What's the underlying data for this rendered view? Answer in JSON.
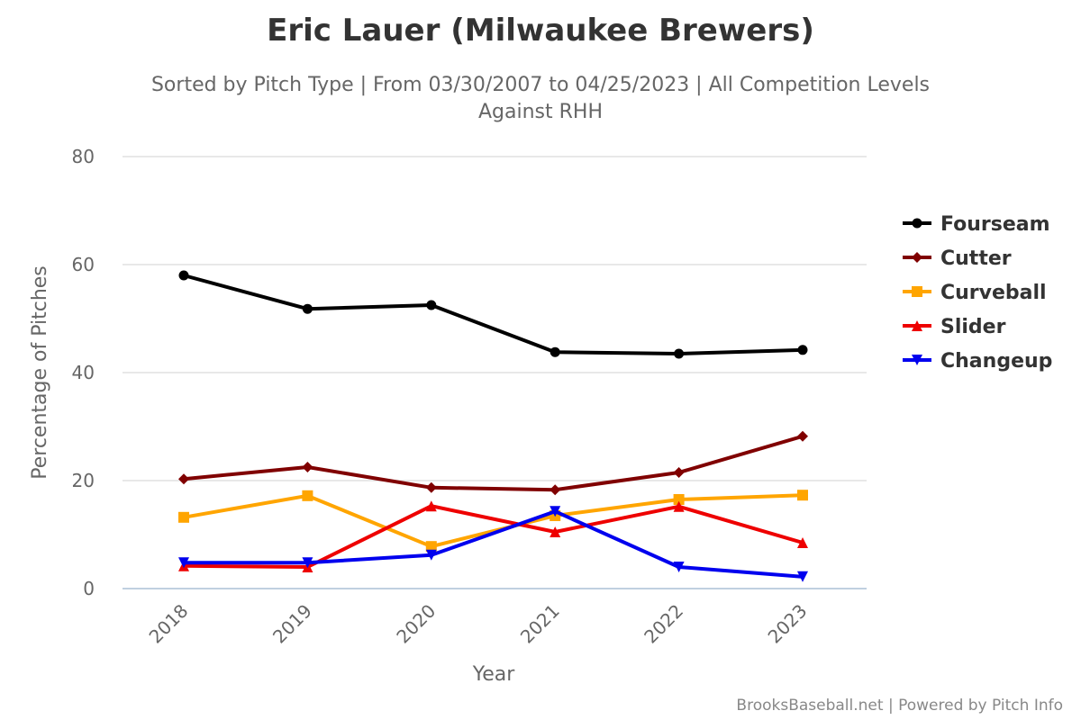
{
  "chart_data": {
    "type": "line",
    "title": "Eric Lauer (Milwaukee Brewers)",
    "subtitle_line1": "Sorted by Pitch Type | From 03/30/2007 to 04/25/2023 | All Competition Levels",
    "subtitle_line2": "Against RHH",
    "xlabel": "Year",
    "ylabel": "Percentage of Pitches",
    "ylim": [
      0,
      80
    ],
    "yticks": [
      "0",
      "20",
      "40",
      "60",
      "80"
    ],
    "categories": [
      "2018",
      "2019",
      "2020",
      "2021",
      "2022",
      "2023"
    ],
    "grid": true,
    "legend": "right",
    "series": [
      {
        "name": "Fourseam",
        "color": "#000000",
        "marker": "circle",
        "values": [
          58.0,
          51.8,
          52.5,
          43.8,
          43.5,
          44.2
        ]
      },
      {
        "name": "Cutter",
        "color": "#800000",
        "marker": "diamond",
        "values": [
          20.3,
          22.5,
          18.7,
          18.3,
          21.5,
          28.2
        ]
      },
      {
        "name": "Curveball",
        "color": "#FFA500",
        "marker": "square",
        "values": [
          13.2,
          17.2,
          7.8,
          13.5,
          16.5,
          17.3
        ]
      },
      {
        "name": "Slider",
        "color": "#EE0000",
        "marker": "triangle",
        "values": [
          4.2,
          4.0,
          15.3,
          10.5,
          15.2,
          8.5
        ]
      },
      {
        "name": "Changeup",
        "color": "#0000EE",
        "marker": "triangle-down",
        "values": [
          4.8,
          4.8,
          6.2,
          14.3,
          4.0,
          2.2
        ]
      }
    ]
  },
  "credit": "BrooksBaseball.net | Powered by Pitch Info"
}
